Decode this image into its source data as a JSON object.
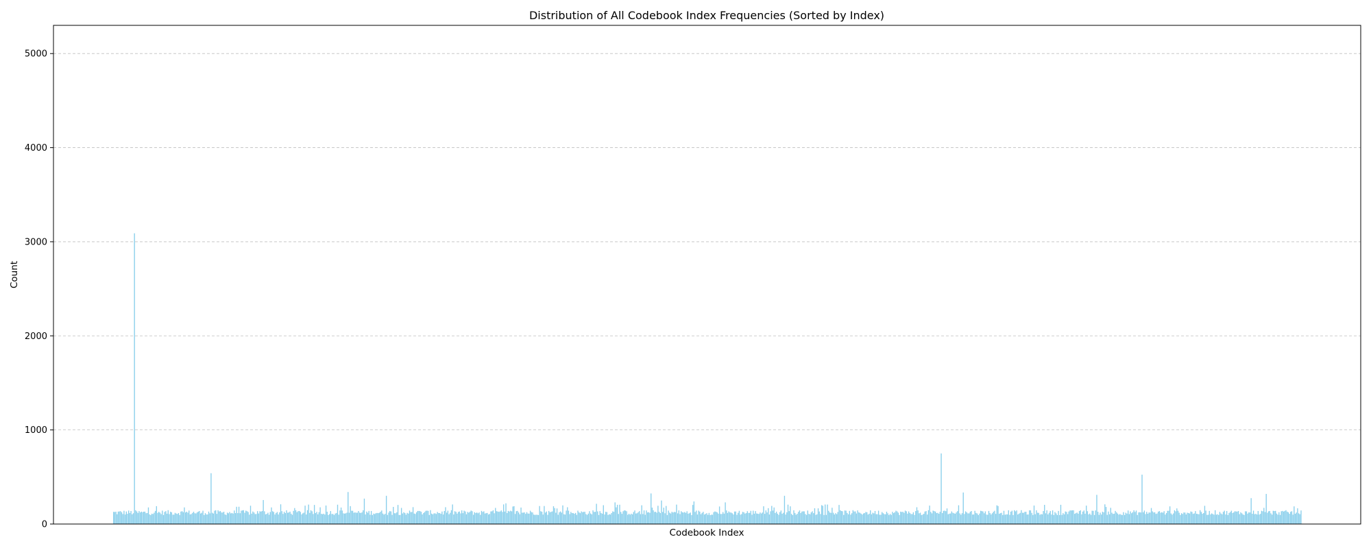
{
  "chart_data": {
    "type": "bar",
    "title": "Distribution of All Codebook Index Frequencies (Sorted by Index)",
    "xlabel": "Codebook Index",
    "ylabel": "Count",
    "ylim": [
      0,
      5300
    ],
    "yticks": [
      0,
      1000,
      2000,
      3000,
      4000,
      5000
    ],
    "x_tick_labels_shown": false,
    "grid": {
      "y": true,
      "x": false,
      "style": "dashed"
    },
    "legend": "none",
    "bar_color": "#87ceeb",
    "num_categories": 1024,
    "typical_count_range": [
      95,
      165
    ],
    "notable_values": [
      {
        "index": 18,
        "value": 3090
      },
      {
        "index": 84,
        "value": 540
      },
      {
        "index": 129,
        "value": 255
      },
      {
        "index": 202,
        "value": 340
      },
      {
        "index": 216,
        "value": 270
      },
      {
        "index": 235,
        "value": 300
      },
      {
        "index": 338,
        "value": 220
      },
      {
        "index": 416,
        "value": 215
      },
      {
        "index": 432,
        "value": 230
      },
      {
        "index": 463,
        "value": 325
      },
      {
        "index": 472,
        "value": 250
      },
      {
        "index": 500,
        "value": 240
      },
      {
        "index": 527,
        "value": 230
      },
      {
        "index": 578,
        "value": 300
      },
      {
        "index": 713,
        "value": 750
      },
      {
        "index": 732,
        "value": 335
      },
      {
        "index": 847,
        "value": 310
      },
      {
        "index": 886,
        "value": 525
      },
      {
        "index": 980,
        "value": 275
      },
      {
        "index": 993,
        "value": 320
      }
    ]
  }
}
